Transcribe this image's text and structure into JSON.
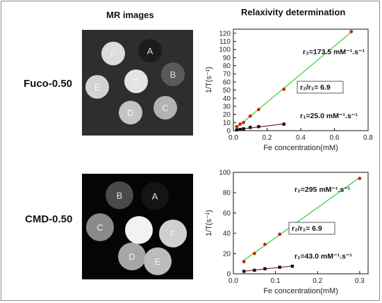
{
  "headers": {
    "mr": "MR images",
    "relax": "Relaxivity determination"
  },
  "rows": [
    {
      "label": "Fuco-0.50",
      "phantom": {
        "tubes": [
          {
            "letter": "A",
            "gray": "#1c1c1c",
            "text": "#dddddd"
          },
          {
            "letter": "B",
            "gray": "#5a5a5a",
            "text": "#dddddd"
          },
          {
            "letter": "C",
            "gray": "#b2b2b2",
            "text": "#f4f4f4"
          },
          {
            "letter": "D",
            "gray": "#c4c4c4",
            "text": "#f4f4f4"
          },
          {
            "letter": "E",
            "gray": "#d2d2d2",
            "text": "#f4f4f4"
          },
          {
            "letter": "F",
            "gray": "#dcdcdc",
            "text": "#f4f4f4"
          },
          {
            "letter": "G",
            "gray": "#e3e3e3",
            "text": "#f4f4f4"
          }
        ]
      }
    },
    {
      "label": "CMD-0.50",
      "phantom": {
        "tubes": [
          {
            "letter": "A",
            "gray": "#141414",
            "text": "#e0e0e0"
          },
          {
            "letter": "B",
            "gray": "#4a4a4a",
            "text": "#e0e0e0"
          },
          {
            "letter": "C",
            "gray": "#8a8a8a",
            "text": "#f2f2f2"
          },
          {
            "letter": "D",
            "gray": "#a6a6a6",
            "text": "#f2f2f2"
          },
          {
            "letter": "E",
            "gray": "#bcbcbc",
            "text": "#f2f2f2"
          },
          {
            "letter": "F",
            "gray": "#d0d0d0",
            "text": "#f2f2f2"
          },
          {
            "letter": "G",
            "gray": "#f2f2f2",
            "text": "#f2f2f2"
          }
        ]
      }
    }
  ],
  "chart_data": [
    {
      "type": "scatter",
      "xlabel": "Fe concentration(mM)",
      "ylabel": "1/T(s⁻¹)",
      "xlim": [
        0,
        0.8
      ],
      "ylim": [
        0,
        125
      ],
      "x_ticks": [
        "0.0",
        "0.2",
        "0.4",
        "0.6",
        "0.8"
      ],
      "y_ticks": [
        "0",
        "10",
        "20",
        "30",
        "40",
        "50",
        "60",
        "70",
        "80",
        "90",
        "100",
        "110",
        "120"
      ],
      "grid": false,
      "series": [
        {
          "color": "#cc2200",
          "fit_color": "#33cc33",
          "x": [
            0.02,
            0.04,
            0.06,
            0.1,
            0.15,
            0.3,
            0.7
          ],
          "y": [
            5,
            8,
            10,
            18,
            26,
            51,
            122
          ]
        },
        {
          "color": "#111111",
          "fit_color": "#8b1a1a",
          "x": [
            0.02,
            0.04,
            0.06,
            0.1,
            0.15,
            0.3
          ],
          "y": [
            1,
            1.5,
            2.3,
            4,
            5,
            8
          ]
        }
      ],
      "annotations": [
        {
          "text": "r₂=173.5 mM⁻¹.s⁻¹"
        },
        {
          "text": "r₂/r₁= 6.9"
        },
        {
          "text": "r₁=25.0 mM⁻¹.s⁻¹"
        }
      ]
    },
    {
      "type": "scatter",
      "xlabel": "Fe concentration(mM)",
      "ylabel": "1/T(s⁻¹)",
      "xlim": [
        0,
        0.32
      ],
      "ylim": [
        0,
        100
      ],
      "x_ticks": [
        "0.0",
        "0.1",
        "0.2",
        "0.3"
      ],
      "y_ticks": [
        "0",
        "20",
        "40",
        "60",
        "80",
        "100"
      ],
      "grid": false,
      "series": [
        {
          "color": "#cc2200",
          "fit_color": "#33cc33",
          "x": [
            0.025,
            0.05,
            0.075,
            0.11,
            0.14,
            0.3
          ],
          "y": [
            12,
            20,
            29,
            39,
            49,
            94
          ]
        },
        {
          "color": "#111111",
          "fit_color": "#8b1a1a",
          "x": [
            0.025,
            0.05,
            0.075,
            0.11,
            0.14
          ],
          "y": [
            2.5,
            3.5,
            5,
            6.5,
            7.5
          ]
        }
      ],
      "annotations": [
        {
          "text": "r₂=295 mM⁻¹.s⁻¹"
        },
        {
          "text": "r₂/r₁= 6.9"
        },
        {
          "text": "r₁=43.0 mM⁻¹.s⁻¹"
        }
      ]
    }
  ]
}
